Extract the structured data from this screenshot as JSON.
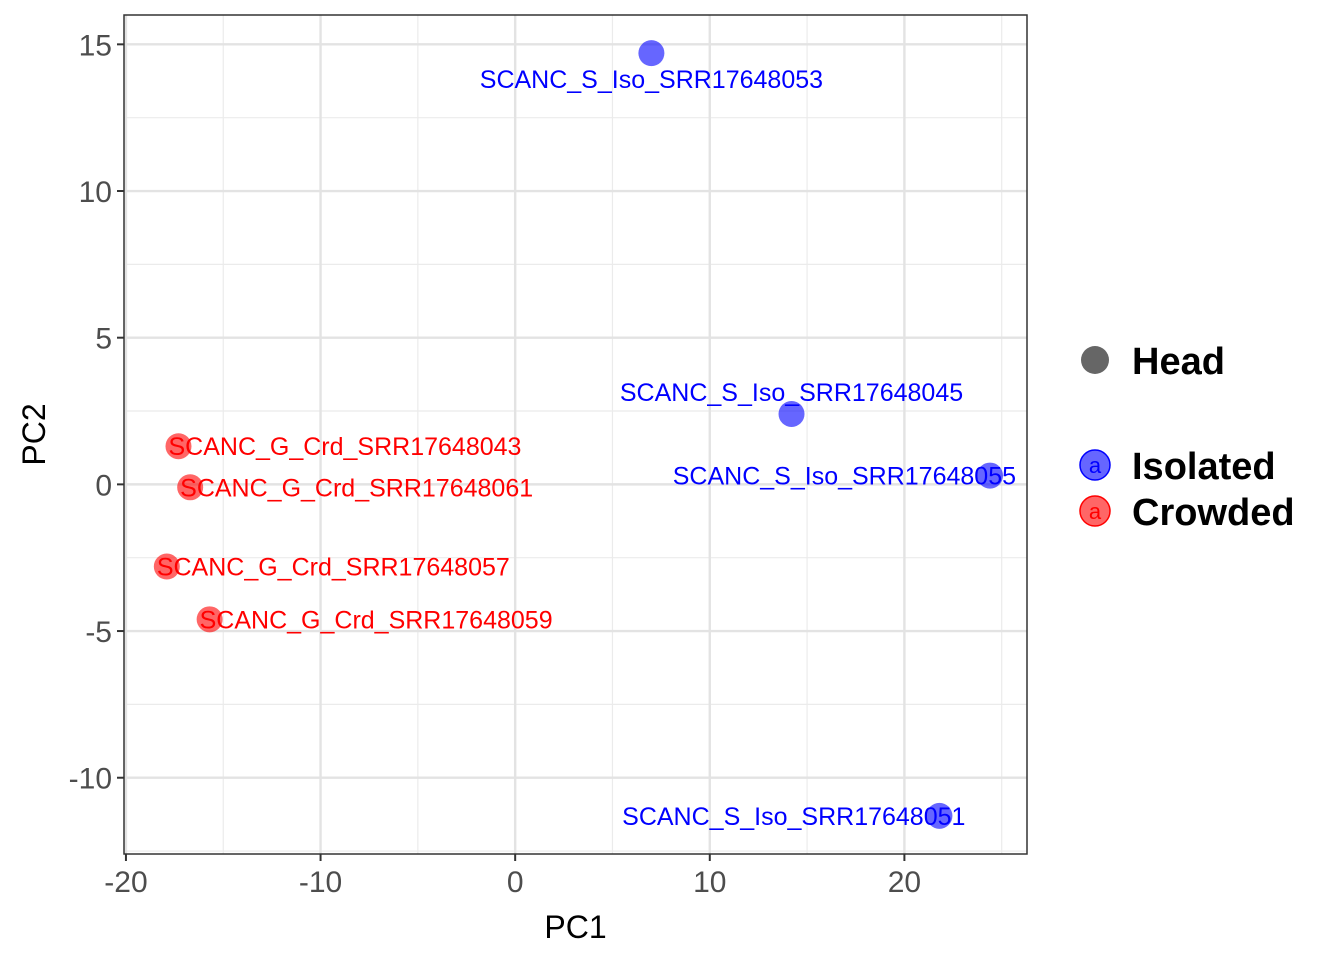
{
  "chart_data": {
    "type": "scatter",
    "xlabel": "PC1",
    "ylabel": "PC2",
    "xlim": [
      -20.1,
      26.3
    ],
    "ylim": [
      -12.6,
      16.0
    ],
    "x_ticks": [
      -20,
      -10,
      0,
      10,
      20
    ],
    "x_tick_labels": [
      "-20",
      "-10",
      "0",
      "10",
      "20"
    ],
    "y_ticks": [
      -10,
      -5,
      0,
      5,
      10,
      15
    ],
    "y_tick_labels": [
      "-10",
      "-5",
      "0",
      "5",
      "10",
      "15"
    ],
    "grid": true,
    "legend_position": "right",
    "legend": {
      "shape": {
        "label": "Head"
      },
      "groups": [
        {
          "label": "Isolated",
          "color": "#0000ff",
          "key_glyph": "a"
        },
        {
          "label": "Crowded",
          "color": "#ff0000",
          "key_glyph": "a"
        }
      ]
    },
    "points": [
      {
        "x": 7.0,
        "y": 14.7,
        "group": "Isolated",
        "label": "SCANC_S_Iso_SRR17648053",
        "label_pos": "below"
      },
      {
        "x": 14.2,
        "y": 2.4,
        "group": "Isolated",
        "label": "SCANC_S_Iso_SRR17648045",
        "label_pos": "above"
      },
      {
        "x": 24.4,
        "y": 0.3,
        "group": "Isolated",
        "label": "SCANC_S_Iso_SRR17648055",
        "label_pos": "left"
      },
      {
        "x": 21.8,
        "y": -11.3,
        "group": "Isolated",
        "label": "SCANC_S_Iso_SRR17648051",
        "label_pos": "left"
      },
      {
        "x": -17.3,
        "y": 1.3,
        "group": "Crowded",
        "label": "SCANC_G_Crd_SRR17648043",
        "label_pos": "right"
      },
      {
        "x": -16.7,
        "y": -0.1,
        "group": "Crowded",
        "label": "SCANC_G_Crd_SRR17648061",
        "label_pos": "right"
      },
      {
        "x": -17.9,
        "y": -2.8,
        "group": "Crowded",
        "label": "SCANC_G_Crd_SRR17648057",
        "label_pos": "right"
      },
      {
        "x": -15.7,
        "y": -4.6,
        "group": "Crowded",
        "label": "SCANC_G_Crd_SRR17648059",
        "label_pos": "right"
      }
    ]
  }
}
